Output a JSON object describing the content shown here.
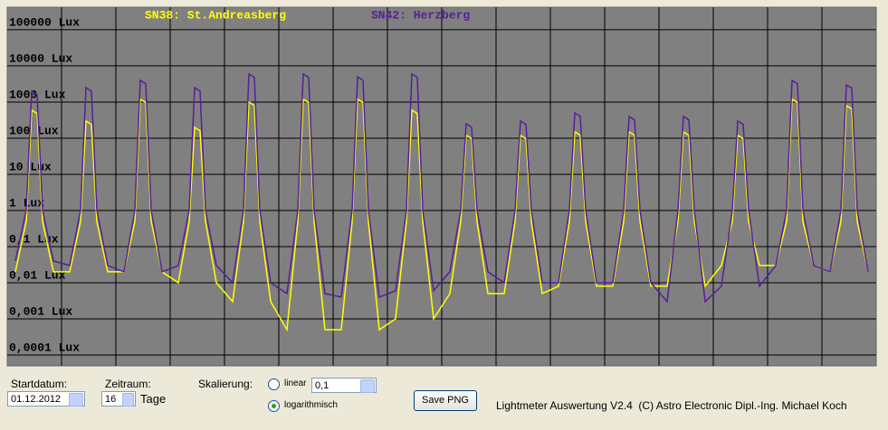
{
  "chart_data": {
    "type": "line",
    "log_scale": true,
    "grid": true,
    "xlim": [
      0,
      16
    ],
    "xticks": [
      1,
      2,
      3,
      4,
      5,
      6,
      7,
      8,
      9,
      10,
      11,
      12,
      13,
      14,
      15
    ],
    "ylim": [
      5e-05,
      420000
    ],
    "yticks": [
      {
        "value": 100000,
        "label": "100000 Lux"
      },
      {
        "value": 10000,
        "label": "10000 Lux"
      },
      {
        "value": 1000,
        "label": "1000 Lux"
      },
      {
        "value": 100,
        "label": "100 Lux"
      },
      {
        "value": 10,
        "label": "10 Lux"
      },
      {
        "value": 1,
        "label": "1 Lux"
      },
      {
        "value": 0.1,
        "label": "0,1 Lux"
      },
      {
        "value": 0.01,
        "label": "0,01 Lux"
      },
      {
        "value": 0.001,
        "label": "0,001 Lux"
      },
      {
        "value": 0.0001,
        "label": "0,0001 Lux"
      }
    ],
    "x": [
      0.15,
      0.35,
      0.45,
      0.55,
      0.65,
      0.85,
      1.15,
      1.35,
      1.45,
      1.55,
      1.65,
      1.85,
      2.15,
      2.35,
      2.45,
      2.55,
      2.65,
      2.85,
      3.15,
      3.35,
      3.45,
      3.55,
      3.65,
      3.85,
      4.15,
      4.35,
      4.45,
      4.55,
      4.65,
      4.85,
      5.15,
      5.35,
      5.45,
      5.55,
      5.65,
      5.85,
      6.15,
      6.35,
      6.45,
      6.55,
      6.65,
      6.85,
      7.15,
      7.35,
      7.45,
      7.55,
      7.65,
      7.85,
      8.15,
      8.35,
      8.45,
      8.55,
      8.65,
      8.85,
      9.15,
      9.35,
      9.45,
      9.55,
      9.65,
      9.85,
      10.15,
      10.35,
      10.45,
      10.55,
      10.65,
      10.85,
      11.15,
      11.35,
      11.45,
      11.55,
      11.65,
      11.85,
      12.15,
      12.35,
      12.45,
      12.55,
      12.65,
      12.85,
      13.15,
      13.35,
      13.45,
      13.55,
      13.65,
      13.85,
      14.15,
      14.35,
      14.45,
      14.55,
      14.65,
      14.85,
      15.15,
      15.35,
      15.45,
      15.55,
      15.65,
      15.85
    ],
    "series": [
      {
        "name": "SN38: St.Andreasberg",
        "color": "#ffff00",
        "values": [
          0.02,
          0.5,
          600,
          480,
          0.5,
          0.02,
          0.02,
          0.5,
          300,
          240,
          0.5,
          0.02,
          0.02,
          0.5,
          1200,
          960,
          0.5,
          0.02,
          0.01,
          0.5,
          200,
          160,
          0.5,
          0.01,
          0.003,
          0.5,
          1000,
          800,
          0.5,
          0.003,
          0.0005,
          0.5,
          1200,
          960,
          0.5,
          0.0005,
          0.0005,
          0.5,
          1200,
          960,
          0.5,
          0.0005,
          0.001,
          0.5,
          600,
          480,
          0.5,
          0.001,
          0.005,
          0.5,
          120,
          96,
          0.5,
          0.005,
          0.005,
          0.5,
          120,
          96,
          0.5,
          0.005,
          0.008,
          0.5,
          150,
          120,
          0.5,
          0.008,
          0.008,
          0.5,
          150,
          120,
          0.5,
          0.008,
          0.008,
          0.5,
          150,
          120,
          0.5,
          0.008,
          0.03,
          0.5,
          120,
          96,
          0.5,
          0.03,
          0.03,
          0.5,
          1200,
          960,
          0.5,
          0.03,
          0.02,
          0.5,
          800,
          640,
          0.5,
          0.02
        ]
      },
      {
        "name": "SN42: Herzberg",
        "color": "#55209a",
        "values": [
          0.04,
          1,
          2000,
          1600,
          1,
          0.04,
          0.03,
          1,
          2500,
          2000,
          1,
          0.03,
          0.02,
          1,
          4000,
          3200,
          1,
          0.02,
          0.03,
          1,
          2500,
          2000,
          1,
          0.03,
          0.01,
          1,
          6000,
          4800,
          1,
          0.01,
          0.005,
          1,
          6000,
          4800,
          1,
          0.005,
          0.004,
          1,
          5000,
          4000,
          1,
          0.004,
          0.006,
          1,
          6000,
          4800,
          1,
          0.006,
          0.02,
          1,
          250,
          200,
          1,
          0.02,
          0.01,
          1,
          300,
          240,
          1,
          0.01,
          0.01,
          1,
          500,
          400,
          1,
          0.01,
          0.01,
          1,
          400,
          320,
          1,
          0.01,
          0.003,
          1,
          400,
          320,
          1,
          0.003,
          0.008,
          1,
          300,
          240,
          1,
          0.008,
          0.03,
          1,
          4000,
          3200,
          1,
          0.03,
          0.02,
          1,
          3000,
          2400,
          1,
          0.02
        ]
      }
    ]
  },
  "controls": {
    "startdatum_label": "Startdatum:",
    "startdatum": "01.12.2012",
    "zeitraum_label": "Zeitraum:",
    "zeitraum": 16,
    "zeitraum_unit": "Tage",
    "skalierung_label": "Skalierung:",
    "linear_label": "linear",
    "linear_factor": "0,1",
    "log_label": "logarithmisch",
    "save_button": "Save PNG",
    "footer": "Lightmeter Auswertung V2.4  (C) Astro Electronic Dipl.-Ing. Michael Koch"
  }
}
